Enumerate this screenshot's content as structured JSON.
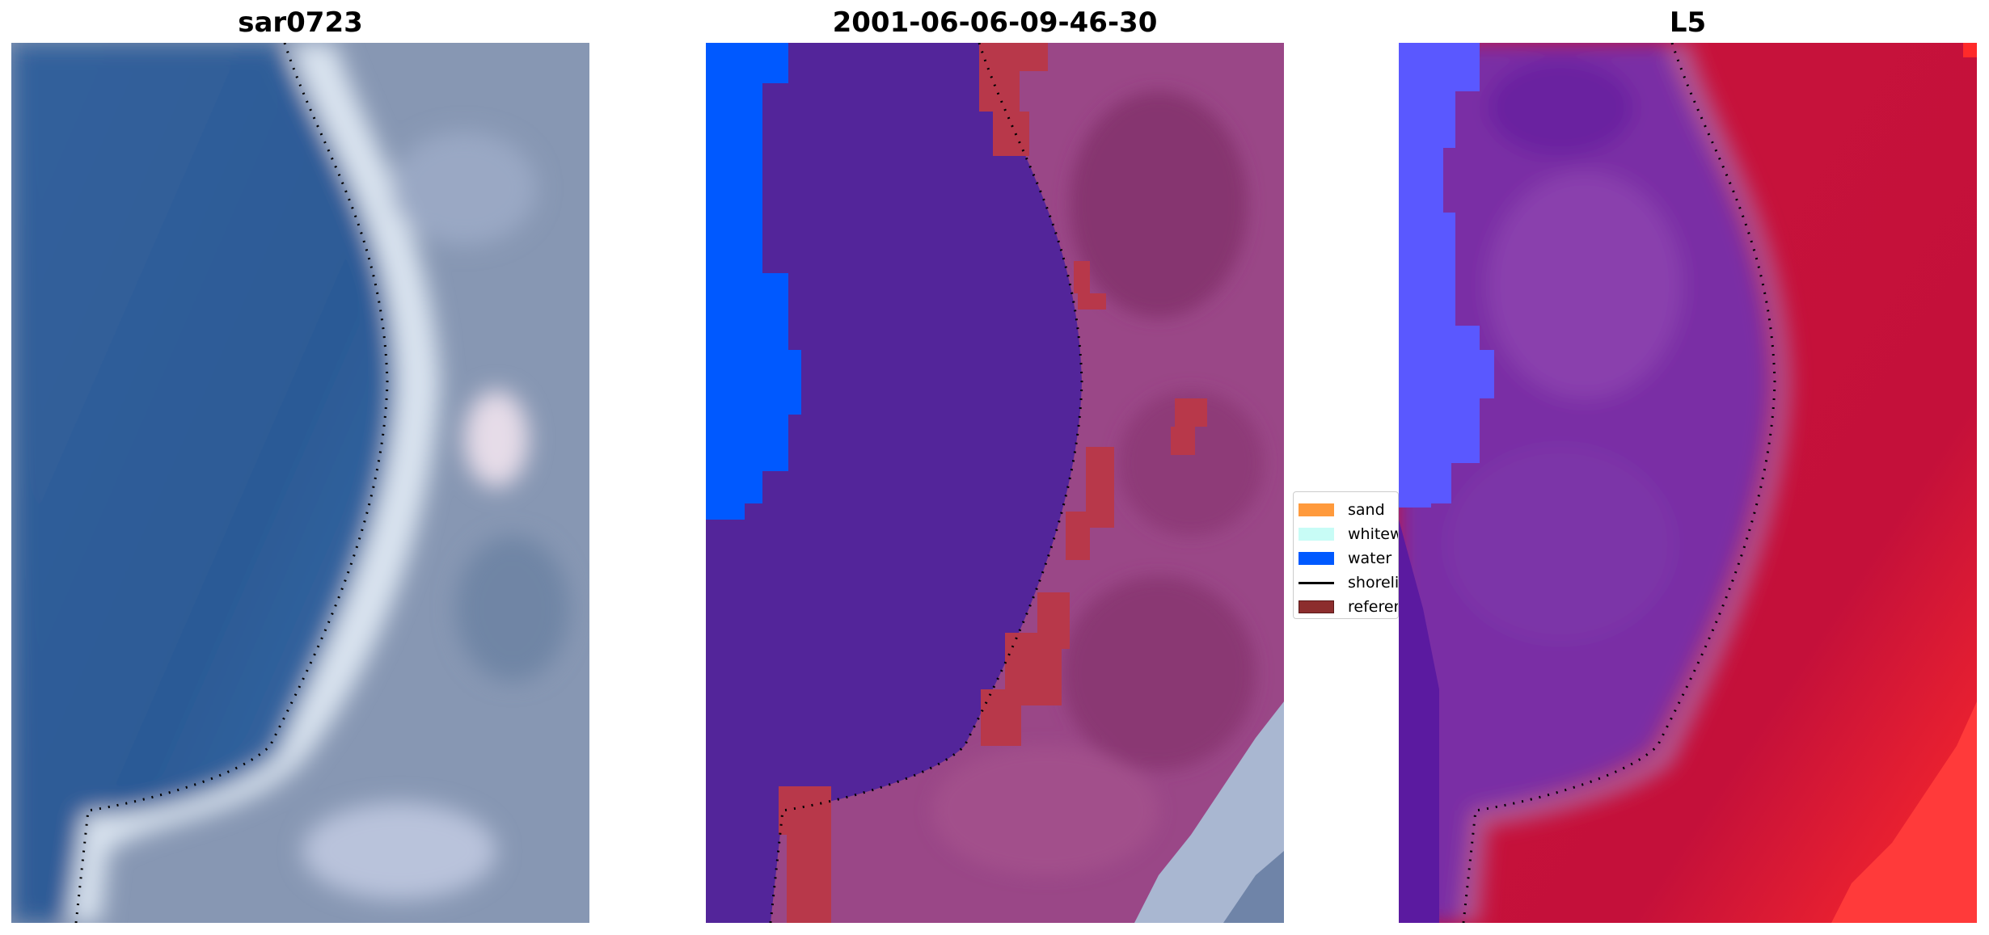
{
  "panels": [
    {
      "title": "sar0723"
    },
    {
      "title": "2001-06-06-09-46-30"
    },
    {
      "title": "L5"
    }
  ],
  "legend": {
    "items": [
      {
        "label": "sand",
        "color": "#ff9a3c",
        "kind": "patch"
      },
      {
        "label": "whitewater",
        "color": "#c8fcf6",
        "kind": "patch"
      },
      {
        "label": "water",
        "color": "#0059ff",
        "kind": "patch"
      },
      {
        "label": "shoreline",
        "color": "#000000",
        "kind": "line"
      },
      {
        "label": "reference",
        "color": "#8c2d2d",
        "kind": "patch"
      }
    ]
  },
  "colors": {
    "sea_blue": "#2f5f9b",
    "surf_white": "#d8e2ef",
    "land_gray": "#8a9ab5",
    "classified_sand": "#9b4585",
    "classified_water_deep": "#53259a",
    "classified_water": "#0059ff",
    "reference_patch": "#b8384a",
    "index_red": "#c8143c",
    "index_purple": "#7a2fa5",
    "index_blue": "#5a5cff"
  }
}
